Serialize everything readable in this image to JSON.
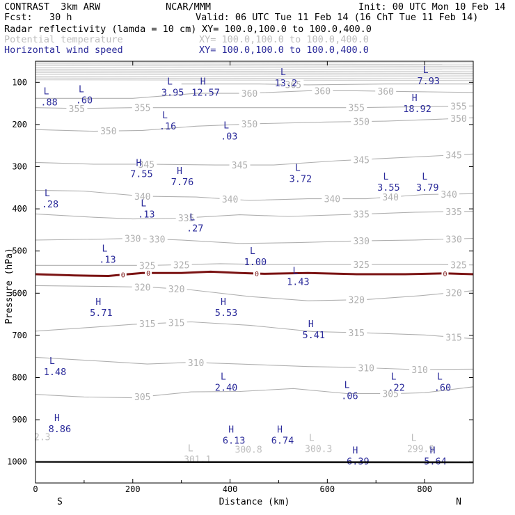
{
  "header": {
    "model": "CONTRAST  3km ARW",
    "org": "NCAR/MMM",
    "init": "Init: 00 UTC Mon 10 Feb 14",
    "fcst": "Fcst:   30 h",
    "valid": "Valid: 06 UTC Tue 11 Feb 14 (16 ChT Tue 11 Feb 14)"
  },
  "fields": [
    {
      "name": "Radar reflectivity (lamda = 10 cm)",
      "xy": "XY= 100.0,100.0 to 100.0,400.0",
      "color": "#000000"
    },
    {
      "name": "Potential temperature",
      "xy": "XY= 100.0,100.0 to 100.0,400.0",
      "color": "#bdbdbd"
    },
    {
      "name": "Horizontal wind speed",
      "xy": "XY= 100.0,100.0 to 100.0,400.0",
      "color": "#2a2a9a"
    }
  ],
  "chart_data": {
    "type": "line",
    "xlabel": "Distance (km)",
    "ylabel": "Pressure (hPa)",
    "xlim": [
      0,
      900
    ],
    "ylim": [
      1050,
      50
    ],
    "x_ticks": [
      0,
      200,
      400,
      600,
      800
    ],
    "y_ticks": [
      100,
      200,
      300,
      400,
      500,
      600,
      700,
      800,
      900,
      1000
    ],
    "x_end_labels": {
      "left": "S",
      "right": "N"
    },
    "theta_isentropes": [
      {
        "name": "305",
        "points": [
          [
            0,
            840
          ],
          [
            100,
            846
          ],
          [
            200,
            848
          ],
          [
            320,
            834
          ],
          [
            420,
            833
          ],
          [
            530,
            826
          ],
          [
            640,
            838
          ],
          [
            740,
            838
          ],
          [
            800,
            836
          ],
          [
            900,
            822
          ]
        ],
        "labels": [
          [
            220,
            "305"
          ],
          [
            730,
            "305"
          ]
        ]
      },
      {
        "name": "310",
        "points": [
          [
            0,
            752
          ],
          [
            120,
            760
          ],
          [
            230,
            768
          ],
          [
            320,
            764
          ],
          [
            420,
            768
          ],
          [
            560,
            774
          ],
          [
            660,
            776
          ],
          [
            780,
            781
          ],
          [
            900,
            780
          ]
        ],
        "labels": [
          [
            330,
            "310"
          ],
          [
            680,
            "310"
          ],
          [
            790,
            "310"
          ]
        ]
      },
      {
        "name": "315",
        "points": [
          [
            0,
            690
          ],
          [
            90,
            683
          ],
          [
            200,
            674
          ],
          [
            320,
            668
          ],
          [
            440,
            676
          ],
          [
            570,
            691
          ],
          [
            680,
            694
          ],
          [
            800,
            699
          ],
          [
            900,
            708
          ]
        ],
        "labels": [
          [
            230,
            "315"
          ],
          [
            290,
            "315"
          ],
          [
            660,
            "315"
          ],
          [
            860,
            "315"
          ]
        ]
      },
      {
        "name": "320",
        "points": [
          [
            0,
            582
          ],
          [
            140,
            584
          ],
          [
            240,
            586
          ],
          [
            320,
            592
          ],
          [
            440,
            608
          ],
          [
            560,
            618
          ],
          [
            680,
            615
          ],
          [
            790,
            606
          ],
          [
            900,
            594
          ]
        ],
        "labels": [
          [
            220,
            "320"
          ],
          [
            290,
            "320"
          ],
          [
            660,
            "320"
          ],
          [
            860,
            "320"
          ]
        ]
      },
      {
        "name": "325",
        "points": [
          [
            0,
            534
          ],
          [
            120,
            534
          ],
          [
            240,
            534
          ],
          [
            380,
            530
          ],
          [
            480,
            532
          ],
          [
            600,
            532
          ],
          [
            720,
            532
          ],
          [
            830,
            532
          ],
          [
            900,
            533
          ]
        ],
        "labels": [
          [
            230,
            "325"
          ],
          [
            300,
            "325"
          ],
          [
            670,
            "325"
          ],
          [
            870,
            "325"
          ]
        ]
      },
      {
        "name": "330",
        "points": [
          [
            0,
            474
          ],
          [
            130,
            472
          ],
          [
            200,
            470
          ],
          [
            300,
            474
          ],
          [
            420,
            482
          ],
          [
            540,
            480
          ],
          [
            660,
            476
          ],
          [
            780,
            474
          ],
          [
            900,
            470
          ]
        ],
        "labels": [
          [
            200,
            "330"
          ],
          [
            250,
            "330"
          ],
          [
            670,
            "330"
          ],
          [
            860,
            "330"
          ]
        ]
      },
      {
        "name": "335",
        "points": [
          [
            0,
            412
          ],
          [
            120,
            420
          ],
          [
            200,
            424
          ],
          [
            300,
            422
          ],
          [
            420,
            414
          ],
          [
            520,
            418
          ],
          [
            680,
            412
          ],
          [
            780,
            408
          ],
          [
            900,
            406
          ]
        ],
        "labels": [
          [
            310,
            "335"
          ],
          [
            670,
            "335"
          ],
          [
            860,
            "335"
          ]
        ]
      },
      {
        "name": "340",
        "points": [
          [
            0,
            356
          ],
          [
            100,
            358
          ],
          [
            220,
            370
          ],
          [
            330,
            372
          ],
          [
            440,
            380
          ],
          [
            560,
            376
          ],
          [
            680,
            376
          ],
          [
            800,
            366
          ],
          [
            900,
            364
          ]
        ],
        "labels": [
          [
            220,
            "340"
          ],
          [
            400,
            "340"
          ],
          [
            610,
            "340"
          ],
          [
            730,
            "340"
          ],
          [
            850,
            "340"
          ]
        ]
      },
      {
        "name": "345",
        "points": [
          [
            0,
            290
          ],
          [
            120,
            294
          ],
          [
            230,
            294
          ],
          [
            370,
            296
          ],
          [
            490,
            296
          ],
          [
            620,
            286
          ],
          [
            760,
            278
          ],
          [
            900,
            270
          ]
        ],
        "labels": [
          [
            228,
            "345"
          ],
          [
            420,
            "345"
          ],
          [
            670,
            "345"
          ],
          [
            860,
            "345"
          ]
        ]
      },
      {
        "name": "350",
        "points": [
          [
            0,
            212
          ],
          [
            120,
            216
          ],
          [
            220,
            214
          ],
          [
            330,
            204
          ],
          [
            460,
            198
          ],
          [
            600,
            194
          ],
          [
            720,
            192
          ],
          [
            820,
            188
          ],
          [
            900,
            184
          ]
        ],
        "labels": [
          [
            150,
            "350"
          ],
          [
            440,
            "350"
          ],
          [
            670,
            "350"
          ],
          [
            870,
            "350"
          ]
        ]
      },
      {
        "name": "355",
        "points": [
          [
            0,
            160
          ],
          [
            90,
            162
          ],
          [
            200,
            160
          ],
          [
            320,
            160
          ],
          [
            440,
            160
          ],
          [
            560,
            160
          ],
          [
            660,
            160
          ],
          [
            780,
            158
          ],
          [
            900,
            156
          ]
        ],
        "labels": [
          [
            85,
            "355"
          ],
          [
            220,
            "355"
          ],
          [
            660,
            "355"
          ],
          [
            870,
            "355"
          ]
        ]
      },
      {
        "name": "360",
        "points": [
          [
            0,
            138
          ],
          [
            200,
            138
          ],
          [
            330,
            126
          ],
          [
            440,
            126
          ],
          [
            560,
            120
          ],
          [
            660,
            120
          ],
          [
            760,
            122
          ],
          [
            900,
            124
          ]
        ],
        "labels": [
          [
            440,
            "360"
          ],
          [
            590,
            "360"
          ],
          [
            720,
            "360"
          ]
        ]
      },
      {
        "name": "365",
        "points": [
          [
            300,
            104
          ],
          [
            460,
            104
          ],
          [
            560,
            106
          ],
          [
            720,
            104
          ],
          [
            900,
            104
          ]
        ],
        "labels": [
          [
            530,
            "365"
          ]
        ]
      }
    ],
    "zero_contour": {
      "label": "0",
      "points": [
        [
          0,
          555
        ],
        [
          80,
          558
        ],
        [
          150,
          559
        ],
        [
          180,
          556
        ],
        [
          220,
          552
        ],
        [
          300,
          552
        ],
        [
          360,
          549
        ],
        [
          420,
          552
        ],
        [
          470,
          554
        ],
        [
          560,
          552
        ],
        [
          660,
          555
        ],
        [
          760,
          555
        ],
        [
          840,
          553
        ],
        [
          900,
          555
        ]
      ],
      "label_x": [
        180,
        232,
        455,
        842
      ]
    },
    "wind_extrema": [
      {
        "t": "L",
        "v": "3.95",
        "x": 282,
        "p": 120
      },
      {
        "t": "H",
        "v": "12.57",
        "x": 350,
        "p": 120
      },
      {
        "t": "L",
        "v": "13.2",
        "x": 515,
        "p": 98
      },
      {
        "t": "L",
        "v": "7.93",
        "x": 808,
        "p": 93
      },
      {
        "t": "L",
        "v": ".60",
        "x": 100,
        "p": 138
      },
      {
        "t": "L",
        "v": ".88",
        "x": 28,
        "p": 143
      },
      {
        "t": "H",
        "v": "18.92",
        "x": 785,
        "p": 159
      },
      {
        "t": "L",
        "v": ".16",
        "x": 272,
        "p": 200
      },
      {
        "t": "L",
        "v": ".03",
        "x": 398,
        "p": 224
      },
      {
        "t": "H",
        "v": "7.55",
        "x": 218,
        "p": 313
      },
      {
        "t": "H",
        "v": "7.76",
        "x": 302,
        "p": 332
      },
      {
        "t": "L",
        "v": "3.72",
        "x": 545,
        "p": 325
      },
      {
        "t": "L",
        "v": "3.55",
        "x": 726,
        "p": 345
      },
      {
        "t": "L",
        "v": "3.79",
        "x": 806,
        "p": 345
      },
      {
        "t": "L",
        "v": ".28",
        "x": 30,
        "p": 385
      },
      {
        "t": "L",
        "v": ".13",
        "x": 228,
        "p": 409
      },
      {
        "t": "L",
        "v": ".27",
        "x": 328,
        "p": 442
      },
      {
        "t": "L",
        "v": ".13",
        "x": 148,
        "p": 516
      },
      {
        "t": "L",
        "v": "1.00",
        "x": 452,
        "p": 522
      },
      {
        "t": "L",
        "v": "1.43",
        "x": 540,
        "p": 569
      },
      {
        "t": "H",
        "v": "5.71",
        "x": 135,
        "p": 642
      },
      {
        "t": "H",
        "v": "5.53",
        "x": 392,
        "p": 642
      },
      {
        "t": "H",
        "v": "5.41",
        "x": 572,
        "p": 695
      },
      {
        "t": "L",
        "v": "1.48",
        "x": 40,
        "p": 783
      },
      {
        "t": "L",
        "v": "2.40",
        "x": 392,
        "p": 820
      },
      {
        "t": "L",
        "v": ".22",
        "x": 742,
        "p": 820
      },
      {
        "t": "L",
        "v": ".60",
        "x": 837,
        "p": 820
      },
      {
        "t": "L",
        "v": ".06",
        "x": 646,
        "p": 840
      },
      {
        "t": "H",
        "v": "8.86",
        "x": 50,
        "p": 918
      },
      {
        "t": "H",
        "v": "6.13",
        "x": 408,
        "p": 945
      },
      {
        "t": "H",
        "v": "6.74",
        "x": 508,
        "p": 945
      },
      {
        "t": "H",
        "v": "6.39",
        "x": 663,
        "p": 995
      },
      {
        "t": "H",
        "v": "5.64",
        "x": 822,
        "p": 995
      }
    ],
    "theta_extrema": [
      {
        "t": "",
        "v": "2.3",
        "x": 14,
        "p": 942
      },
      {
        "t": "L",
        "v": "301.1",
        "x": 333,
        "p": 995
      },
      {
        "t": "",
        "v": "300.8",
        "x": 438,
        "p": 972
      },
      {
        "t": "L",
        "v": "300.3",
        "x": 582,
        "p": 970
      },
      {
        "t": "L",
        "v": "299.9",
        "x": 792,
        "p": 970
      }
    ]
  }
}
